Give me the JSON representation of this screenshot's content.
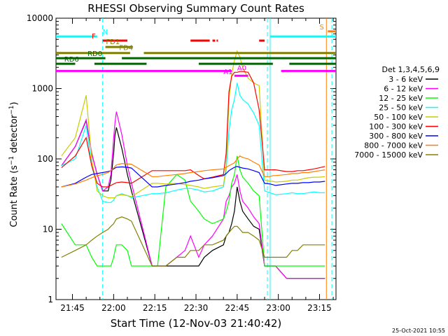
{
  "chart_data": {
    "type": "line",
    "title": "RHESSI Observing Summary Count Rates",
    "xlabel": "Start Time (12-Nov-03 21:40:42)",
    "ylabel_main": "Count Rate (s",
    "ylabel_sup1": "−1",
    "ylabel_mid": " detector",
    "ylabel_sup2": "−1",
    "ylabel_end": ")",
    "yscale": "log",
    "ylim": [
      1,
      10000
    ],
    "xlim_min": [
      -2,
      100
    ],
    "x_ticks": [
      {
        "label": "21:45",
        "m": 4
      },
      {
        "label": "22:00",
        "m": 19
      },
      {
        "label": "22:15",
        "m": 34
      },
      {
        "label": "22:30",
        "m": 49
      },
      {
        "label": "22:45",
        "m": 64
      },
      {
        "label": "23:00",
        "m": 79
      },
      {
        "label": "23:15",
        "m": 94
      }
    ],
    "y_ticks": [
      {
        "label": "1",
        "v": 1
      },
      {
        "label": "10",
        "v": 10
      },
      {
        "label": "100",
        "v": 100
      },
      {
        "label": "1000",
        "v": 1000
      },
      {
        "label": "10000",
        "v": 10000
      }
    ],
    "legend_title": "Det 1,3,4,5,6,9",
    "series": [
      {
        "name": "3 - 6 keV",
        "color": "#000000",
        "x": [
          0,
          5,
          9,
          11,
          13,
          15,
          17,
          18,
          19,
          19.5,
          20,
          22,
          24,
          25.5,
          33,
          35,
          38,
          42,
          45,
          47,
          50,
          52,
          55,
          59,
          60,
          61,
          62,
          63,
          64,
          65,
          66,
          68,
          70,
          72,
          74,
          76,
          77,
          78,
          82,
          84,
          86,
          88,
          90,
          92,
          94,
          96
        ],
        "y": [
          80,
          150,
          350,
          120,
          60,
          35,
          35,
          50,
          120,
          220,
          280,
          140,
          60,
          35,
          3,
          3,
          3,
          3,
          3,
          3,
          3,
          4,
          5,
          6,
          8,
          9,
          12,
          18,
          40,
          25,
          18,
          14,
          11,
          10,
          3,
          3,
          3,
          3,
          2,
          2,
          2,
          2,
          2,
          2,
          2,
          2
        ]
      },
      {
        "name": "6 - 12 keV",
        "color": "#ff00ff",
        "x": [
          0,
          5,
          9,
          11,
          13,
          15,
          17,
          18,
          19,
          19.5,
          20,
          22,
          24,
          25.5,
          33,
          35,
          38,
          42,
          45,
          47,
          50,
          52,
          55,
          59,
          60,
          61,
          62,
          63,
          64,
          65,
          66,
          68,
          70,
          72,
          74,
          76,
          77,
          78,
          82,
          84,
          86,
          88,
          90,
          92,
          94,
          96
        ],
        "y": [
          80,
          150,
          360,
          120,
          60,
          35,
          40,
          60,
          200,
          330,
          470,
          220,
          80,
          45,
          3,
          3,
          3,
          4,
          5,
          8,
          4,
          6,
          8,
          14,
          25,
          30,
          40,
          45,
          60,
          35,
          25,
          20,
          15,
          12,
          3,
          3,
          3,
          3,
          2,
          2,
          2,
          2,
          2,
          2,
          2,
          2
        ]
      },
      {
        "name": "12 - 25 keV",
        "color": "#00ff00",
        "x": [
          0,
          5,
          9,
          11,
          13,
          15,
          17,
          18,
          19,
          19.5,
          20,
          22,
          24,
          25.5,
          33,
          35,
          38,
          42,
          45,
          47,
          50,
          52,
          55,
          59,
          60,
          61,
          62,
          63,
          64,
          65,
          66,
          68,
          70,
          72,
          74,
          76,
          77,
          78,
          82,
          84,
          86,
          88,
          90,
          92,
          94,
          96
        ],
        "y": [
          12,
          6,
          6,
          4,
          3,
          3,
          3,
          3,
          4,
          5,
          6,
          6,
          5,
          3,
          3,
          3,
          40,
          60,
          50,
          25,
          18,
          14,
          12,
          14,
          18,
          25,
          45,
          60,
          110,
          70,
          55,
          45,
          35,
          30,
          3,
          3,
          3,
          3,
          3,
          3,
          3,
          3,
          3,
          3,
          3,
          3
        ]
      },
      {
        "name": "25 - 50 keV",
        "color": "#00ffff",
        "x": [
          0,
          5,
          9,
          11,
          13,
          15,
          17,
          18,
          19,
          19.5,
          20,
          22,
          24,
          25.5,
          33,
          35,
          38,
          42,
          45,
          47,
          50,
          52,
          55,
          59,
          60,
          61,
          62,
          63,
          64,
          65,
          66,
          68,
          70,
          72,
          74,
          76,
          77,
          78,
          82,
          84,
          86,
          88,
          90,
          92,
          94,
          96
        ],
        "y": [
          80,
          100,
          300,
          80,
          40,
          25,
          24,
          24,
          26,
          28,
          30,
          32,
          30,
          28,
          32,
          32,
          33,
          36,
          38,
          38,
          36,
          34,
          35,
          40,
          70,
          250,
          500,
          700,
          1200,
          800,
          700,
          600,
          450,
          300,
          35,
          33,
          32,
          31,
          32,
          33,
          32,
          32,
          33,
          34,
          33,
          33
        ]
      },
      {
        "name": "50 - 100 keV",
        "color": "#cccc00",
        "x": [
          0,
          5,
          9,
          11,
          13,
          15,
          17,
          18,
          19,
          19.5,
          20,
          22,
          24,
          25.5,
          33,
          35,
          38,
          42,
          45,
          47,
          50,
          52,
          55,
          59,
          60,
          61,
          62,
          63,
          64,
          65,
          66,
          68,
          70,
          72,
          74,
          76,
          77,
          78,
          82,
          84,
          86,
          88,
          90,
          92,
          94,
          96
        ],
        "y": [
          110,
          200,
          800,
          100,
          35,
          30,
          28,
          28,
          28,
          28,
          30,
          31,
          30,
          29,
          45,
          45,
          44,
          45,
          43,
          42,
          40,
          38,
          40,
          42,
          80,
          700,
          1600,
          2500,
          3400,
          2800,
          2000,
          1400,
          1200,
          1100,
          50,
          48,
          48,
          47,
          48,
          50,
          50,
          52,
          54,
          55,
          55,
          56
        ]
      },
      {
        "name": "100 - 300 keV",
        "color": "#ff0000",
        "x": [
          0,
          5,
          9,
          11,
          13,
          15,
          17,
          18,
          19,
          19.5,
          20,
          22,
          24,
          25.5,
          33,
          35,
          38,
          42,
          45,
          47,
          50,
          52,
          55,
          59,
          60,
          61,
          62,
          63,
          64,
          65,
          66,
          68,
          70,
          72,
          74,
          76,
          77,
          78,
          82,
          84,
          86,
          88,
          90,
          92,
          94,
          96
        ],
        "y": [
          75,
          110,
          200,
          80,
          45,
          40,
          40,
          42,
          44,
          45,
          46,
          47,
          46,
          45,
          68,
          68,
          68,
          68,
          68,
          70,
          58,
          52,
          55,
          60,
          120,
          900,
          1500,
          1700,
          1700,
          1750,
          1750,
          1700,
          1200,
          500,
          70,
          70,
          70,
          70,
          66,
          66,
          68,
          68,
          70,
          72,
          75,
          78
        ]
      },
      {
        "name": "300 - 800 keV",
        "color": "#0000ff",
        "x": [
          0,
          5,
          9,
          11,
          13,
          15,
          17,
          18,
          19,
          19.5,
          20,
          22,
          24,
          25.5,
          33,
          35,
          38,
          42,
          45,
          47,
          50,
          52,
          55,
          59,
          60,
          61,
          62,
          63,
          64,
          65,
          66,
          68,
          70,
          72,
          74,
          76,
          77,
          78,
          82,
          84,
          86,
          88,
          90,
          92,
          94,
          96
        ],
        "y": [
          40,
          45,
          55,
          60,
          62,
          64,
          66,
          68,
          72,
          74,
          76,
          77,
          76,
          74,
          40,
          40,
          42,
          44,
          46,
          48,
          50,
          52,
          54,
          58,
          62,
          68,
          72,
          76,
          78,
          76,
          74,
          72,
          68,
          64,
          45,
          44,
          43,
          42,
          44,
          45,
          45,
          46,
          46,
          47,
          47,
          48
        ]
      },
      {
        "name": "800 - 7000 keV",
        "color": "#ff8000",
        "x": [
          0,
          5,
          9,
          11,
          13,
          15,
          17,
          18,
          19,
          19.5,
          20,
          22,
          24,
          25.5,
          33,
          35,
          38,
          42,
          45,
          47,
          50,
          52,
          55,
          59,
          60,
          61,
          62,
          63,
          64,
          65,
          66,
          68,
          70,
          72,
          74,
          76,
          77,
          78,
          82,
          84,
          86,
          88,
          90,
          92,
          94,
          96
        ],
        "y": [
          40,
          44,
          50,
          54,
          58,
          60,
          64,
          68,
          74,
          78,
          82,
          86,
          85,
          84,
          56,
          56,
          58,
          60,
          62,
          64,
          66,
          68,
          70,
          72,
          76,
          80,
          84,
          88,
          100,
          110,
          105,
          100,
          90,
          82,
          56,
          56,
          58,
          58,
          60,
          62,
          62,
          64,
          64,
          66,
          68,
          70
        ]
      },
      {
        "name": "7000 - 15000 keV",
        "color": "#808000",
        "x": [
          0,
          5,
          9,
          11,
          13,
          15,
          17,
          18,
          19,
          19.5,
          20,
          22,
          24,
          25.5,
          33,
          35,
          38,
          42,
          45,
          47,
          50,
          52,
          55,
          59,
          60,
          61,
          62,
          63,
          64,
          65,
          66,
          68,
          70,
          72,
          74,
          76,
          77,
          78,
          82,
          84,
          86,
          88,
          90,
          92,
          94,
          96
        ],
        "y": [
          4,
          5,
          6,
          7,
          8,
          9,
          10,
          11,
          12,
          13,
          14,
          15,
          14,
          13,
          3,
          3,
          3,
          4,
          4,
          5,
          5,
          6,
          6,
          7,
          8,
          9,
          10,
          11,
          11,
          10,
          9,
          9,
          8,
          7,
          4,
          4,
          4,
          4,
          4,
          5,
          5,
          6,
          6,
          6,
          6,
          6
        ]
      }
    ],
    "flag_bars": [
      {
        "label": "N",
        "color": "#00ffff",
        "y": 5500,
        "segments": [
          [
            -2,
            13
          ],
          [
            76,
            100
          ]
        ]
      },
      {
        "label": "F",
        "color": "#ff0000",
        "y": 4800,
        "segments": [
          [
            15,
            24
          ],
          [
            47,
            54
          ],
          [
            55,
            56
          ],
          [
            56.5,
            57
          ],
          [
            72,
            74
          ]
        ]
      },
      {
        "label": "FD1",
        "color": "#808000",
        "y": 3900,
        "segments": [
          [
            16,
            26
          ]
        ]
      },
      {
        "label": "FD4",
        "color": "#808000",
        "y": 3200,
        "segments": [
          [
            -2,
            25
          ],
          [
            30,
            100
          ]
        ]
      },
      {
        "label": "RD0",
        "color": "#006400",
        "y": 2700,
        "segments": [
          [
            -2,
            16
          ],
          [
            22,
            100
          ]
        ]
      },
      {
        "label": "RD6",
        "color": "#006400",
        "y": 2250,
        "segments": [
          [
            -2,
            5
          ],
          [
            12,
            31
          ],
          [
            50,
            77
          ],
          [
            83,
            100
          ]
        ]
      },
      {
        "label": "A1",
        "color": "#ff00ff",
        "y": 1780,
        "segments": [
          [
            -2,
            62
          ],
          [
            80,
            100
          ]
        ]
      },
      {
        "label": "A0",
        "color": "#ff00ff",
        "y": 1520,
        "segments": [
          [
            63,
            68
          ]
        ]
      },
      {
        "label": "S",
        "color": "#ff8000",
        "y": 6500,
        "segments": [
          [
            97,
            100
          ]
        ]
      }
    ],
    "annotations": [
      {
        "text": "N",
        "x": 15,
        "y": 5500,
        "color": "#00ffff"
      },
      {
        "text": "F",
        "x": 11,
        "y": 4800,
        "color": "#ff0000"
      },
      {
        "text": "FD1",
        "x": 16.2,
        "y": 4000,
        "color": "#808000"
      },
      {
        "text": "FD4",
        "x": 21,
        "y": 3300,
        "color": "#808000"
      },
      {
        "text": "RD0",
        "x": 9.5,
        "y": 2700,
        "color": "#006400"
      },
      {
        "text": "RD6",
        "x": 1,
        "y": 2250,
        "color": "#006400"
      },
      {
        "text": "A1",
        "x": 59,
        "y": 1500,
        "color": "#ff00ff"
      },
      {
        "text": "A0",
        "x": 64,
        "y": 1700,
        "color": "#ff00ff"
      },
      {
        "text": "S",
        "x": 94,
        "y": 6500,
        "color": "#ff8000"
      }
    ],
    "vlines": [
      {
        "x": 15,
        "color": "#00ffff",
        "style": "dash"
      },
      {
        "x": 75,
        "color": "#00ffff",
        "style": "dash"
      },
      {
        "x": 76,
        "color": "#00ffff",
        "style": "solid"
      },
      {
        "x": 96.5,
        "color": "#ff8000",
        "style": "solid"
      },
      {
        "x": 98.5,
        "color": "#00ffff",
        "style": "dash"
      }
    ]
  },
  "footer": {
    "timestamp": "25-Oct-2021 10:55"
  }
}
